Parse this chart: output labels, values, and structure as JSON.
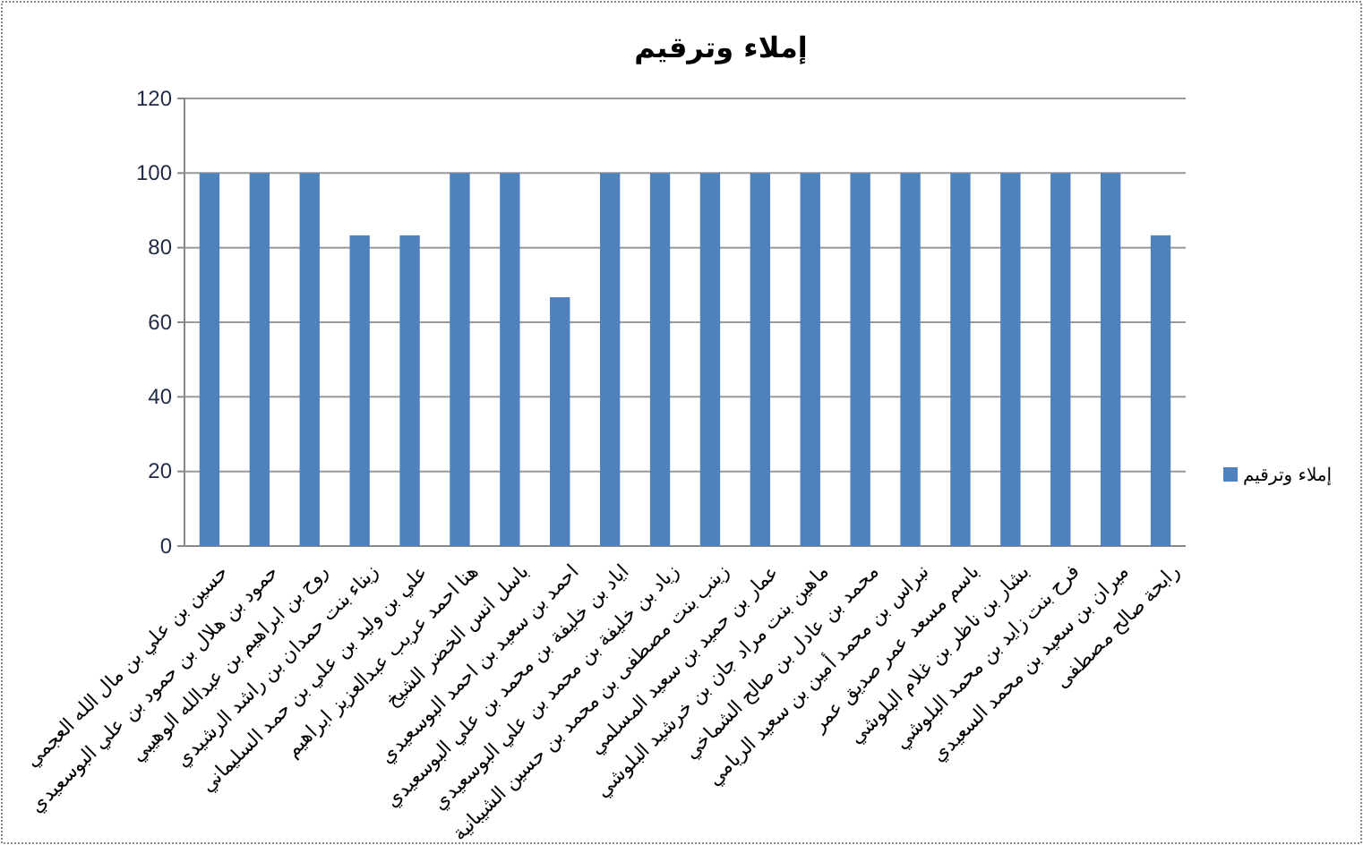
{
  "chart_data": {
    "type": "bar",
    "title": "إملاء وترقيم",
    "categories": [
      "حسين بن علي بن مال الله العجمي",
      "حمود بن هلال بن حمود بن علي البوسعيدي",
      "روح بن ابراهيم بن عبدالله الوهيبي",
      "زيناء بنت حمدان بن راشد الرشيدي",
      "علي بن وليد بن علي بن حمد السليماني",
      "هنا احمد عريب عبدالعزيز ابراهيم",
      "باسل انس الخضر الشيخ",
      "احمد بن سعيد بن احمد البوسعيدي",
      "اياد بن خليفة بن محمد بن علي البوسعيدي",
      "زياد بن خليفة بن محمد بن علي البوسعيدي",
      "زينب بنت مصطفى بن محمد بن حسين الشيبانية",
      "عمار بن حميد بن سعيد المسلمي",
      "ماهين بنت مراد جان بن خرشيد البلوشي",
      "محمد بن عادل بن صالح الشماخي",
      "نبراس بن محمد أمين بن سعيد الريامي",
      "باسم مسعد عمر صديق عمر",
      "بشار بن ناظر بن غلام البلوشي",
      "فرح بنت زايد بن محمد البلوشي",
      "ميران بن سعيد بن محمد السعيدي",
      "رابحة صالح مصطفى"
    ],
    "series": [
      {
        "name": "إملاء وترقيم",
        "color": "#4f81bd",
        "values": [
          100,
          100,
          100,
          83.3,
          83.3,
          100,
          100,
          66.7,
          100,
          100,
          100,
          100,
          100,
          100,
          100,
          100,
          100,
          100,
          100,
          83.3
        ]
      }
    ],
    "ylim": [
      0,
      120
    ],
    "yticks": [
      0,
      20,
      40,
      60,
      80,
      100,
      120
    ],
    "grid": "y",
    "legend": "right"
  }
}
